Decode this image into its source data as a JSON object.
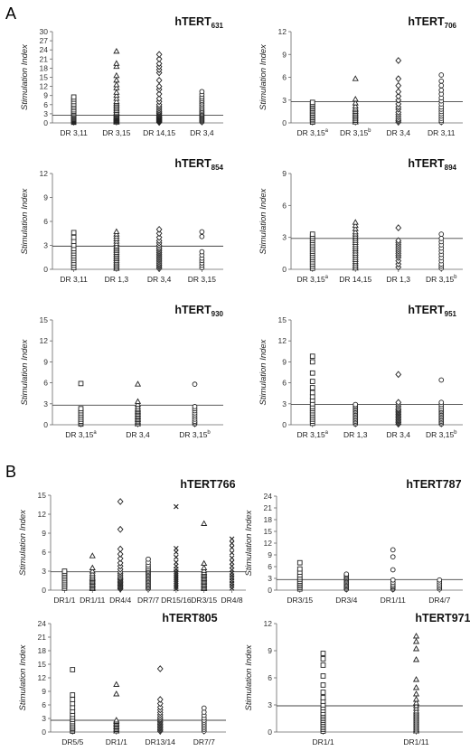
{
  "figure": {
    "panel_letters": [
      "A",
      "B"
    ]
  },
  "chart_data": [
    {
      "type": "scatter",
      "title": "hTERT",
      "title_subscript": "631",
      "ylabel": "Stimulation Index",
      "ylim": [
        0,
        30
      ],
      "yticks": [
        0,
        3,
        6,
        9,
        12,
        15,
        18,
        21,
        24,
        27,
        30
      ],
      "threshold": 2.5,
      "categories": [
        {
          "label": "DR 3,11",
          "sup": "",
          "marker": "square",
          "values": [
            0.2,
            0.4,
            0.6,
            0.8,
            1,
            1.2,
            1.5,
            1.8,
            2,
            2.3,
            2.6,
            3,
            3.4,
            3.8,
            4.3,
            5,
            5.6,
            6.2,
            7,
            7.8,
            8.5
          ]
        },
        {
          "label": "DR 3,15",
          "sup": "",
          "marker": "triangle",
          "values": [
            0.2,
            0.4,
            0.6,
            0.8,
            1,
            1.2,
            1.4,
            1.6,
            1.8,
            2,
            2.2,
            2.5,
            2.8,
            3.1,
            3.5,
            4,
            4.5,
            5,
            5.5,
            6,
            6.5,
            7,
            8,
            9,
            10,
            11.5,
            12.5,
            14,
            15.5,
            18.5,
            19.5,
            23.5
          ]
        },
        {
          "label": "DR 14,15",
          "sup": "",
          "marker": "diamond",
          "values": [
            0.2,
            0.4,
            0.6,
            0.8,
            1,
            1.2,
            1.4,
            1.6,
            1.8,
            2,
            2.3,
            2.6,
            3,
            3.3,
            3.7,
            4.2,
            4.8,
            5.4,
            6,
            7,
            8,
            9.5,
            11,
            12,
            14,
            16.5,
            17.5,
            18.5,
            19.5,
            21,
            22.5
          ]
        },
        {
          "label": "DR 3,4",
          "sup": "",
          "marker": "circle",
          "values": [
            0.3,
            0.6,
            0.9,
            1.2,
            1.5,
            1.8,
            2.1,
            2.4,
            2.7,
            3,
            3.4,
            3.8,
            4.2,
            4.7,
            5.2,
            5.8,
            6.3,
            6.9,
            7.4,
            8,
            8.6,
            9.4,
            10.3
          ]
        }
      ]
    },
    {
      "type": "scatter",
      "title": "hTERT",
      "title_subscript": "706",
      "ylabel": "Stimulation Index",
      "ylim": [
        0,
        12
      ],
      "yticks": [
        0,
        3,
        6,
        9,
        12
      ],
      "threshold": 2.8,
      "categories": [
        {
          "label": "DR 3,15",
          "sup": "a",
          "marker": "square",
          "values": [
            0.1,
            0.3,
            0.5,
            0.7,
            0.9,
            1.1,
            1.3,
            1.5,
            1.7,
            1.9,
            2.1,
            2.3,
            2.5,
            2.7
          ]
        },
        {
          "label": "DR 3,15",
          "sup": "b",
          "marker": "triangle",
          "values": [
            0.1,
            0.3,
            0.5,
            0.7,
            0.9,
            1.1,
            1.3,
            1.5,
            1.7,
            1.9,
            2.2,
            2.6,
            3.1,
            5.8
          ]
        },
        {
          "label": "DR 3,4",
          "sup": "",
          "marker": "diamond",
          "values": [
            0.1,
            0.3,
            0.5,
            0.8,
            1.1,
            1.4,
            1.8,
            2.1,
            2.5,
            3,
            3.5,
            4.1,
            4.9,
            5.8,
            8.2
          ]
        },
        {
          "label": "DR 3,11",
          "sup": "",
          "marker": "circle",
          "values": [
            0.1,
            0.3,
            0.6,
            0.9,
            1.2,
            1.5,
            1.8,
            2.1,
            2.5,
            2.9,
            3.3,
            3.8,
            4.3,
            4.9,
            5.5,
            6.3
          ]
        }
      ]
    },
    {
      "type": "scatter",
      "title": "hTERT",
      "title_subscript": "854",
      "ylabel": "Stimulation Index",
      "ylim": [
        0,
        12
      ],
      "yticks": [
        0,
        3,
        6,
        9,
        12
      ],
      "threshold": 2.9,
      "categories": [
        {
          "label": "DR 3,11",
          "sup": "",
          "marker": "square",
          "values": [
            0.2,
            0.5,
            0.8,
            1.1,
            1.4,
            1.7,
            2,
            2.3,
            2.6,
            3,
            3.5,
            4,
            4.6
          ]
        },
        {
          "label": "DR 1,3",
          "sup": "",
          "marker": "triangle",
          "values": [
            0.1,
            0.3,
            0.5,
            0.7,
            0.9,
            1.1,
            1.3,
            1.5,
            1.7,
            1.9,
            2.1,
            2.3,
            2.5,
            2.7,
            2.9,
            3.2,
            3.5,
            3.8,
            4.1,
            4.4,
            4.7
          ]
        },
        {
          "label": "DR 3,4",
          "sup": "",
          "marker": "diamond",
          "values": [
            0.1,
            0.3,
            0.5,
            0.7,
            0.9,
            1.1,
            1.3,
            1.5,
            1.7,
            1.9,
            2.1,
            2.3,
            2.5,
            2.7,
            3,
            3.3,
            3.6,
            4,
            4.5,
            5
          ]
        },
        {
          "label": "DR 3,15",
          "sup": "",
          "marker": "circle",
          "values": [
            0.2,
            0.5,
            0.8,
            1.1,
            1.4,
            1.8,
            2.2,
            4.1,
            4.7
          ]
        }
      ]
    },
    {
      "type": "scatter",
      "title": "hTERT",
      "title_subscript": "894",
      "ylabel": "Stimulation Index",
      "ylim": [
        0,
        9
      ],
      "yticks": [
        0,
        3,
        6,
        9
      ],
      "threshold": 2.9,
      "categories": [
        {
          "label": "DR 3,15",
          "sup": "a",
          "marker": "square",
          "values": [
            0.1,
            0.3,
            0.5,
            0.7,
            0.9,
            1.1,
            1.3,
            1.5,
            1.7,
            1.9,
            2.1,
            2.3,
            2.5,
            2.7,
            2.9,
            3.1,
            3.3
          ]
        },
        {
          "label": "DR 14,15",
          "sup": "",
          "marker": "triangle",
          "values": [
            0.1,
            0.3,
            0.5,
            0.7,
            0.9,
            1.1,
            1.3,
            1.5,
            1.7,
            1.9,
            2.1,
            2.3,
            2.5,
            2.7,
            2.9,
            3.1,
            3.3,
            3.5,
            3.8,
            4.1,
            4.4
          ]
        },
        {
          "label": "DR 1,3",
          "sup": "",
          "marker": "diamond",
          "values": [
            0.2,
            0.5,
            0.8,
            1.1,
            1.3,
            1.5,
            1.7,
            1.9,
            2.1,
            2.3,
            2.5,
            2.7,
            3.9
          ]
        },
        {
          "label": "DR 3,15",
          "sup": "b",
          "marker": "circle",
          "values": [
            0.1,
            0.3,
            0.5,
            0.8,
            1.1,
            1.4,
            1.7,
            2,
            2.3,
            2.6,
            2.9,
            3.3
          ]
        }
      ]
    },
    {
      "type": "scatter",
      "title": "hTERT",
      "title_subscript": "930",
      "ylabel": "Stimulation Index",
      "ylim": [
        0,
        15
      ],
      "yticks": [
        0,
        3,
        6,
        9,
        12,
        15
      ],
      "threshold": 2.8,
      "categories": [
        {
          "label": "DR 3,15",
          "sup": "a",
          "marker": "square",
          "values": [
            0.1,
            0.3,
            0.5,
            0.8,
            1.1,
            1.4,
            1.7,
            2,
            2.3,
            5.9
          ]
        },
        {
          "label": "DR 3,4",
          "sup": "",
          "marker": "triangle",
          "values": [
            0.1,
            0.3,
            0.5,
            0.7,
            0.9,
            1.1,
            1.3,
            1.5,
            1.7,
            1.9,
            2.1,
            2.3,
            2.6,
            2.9,
            3.3,
            5.8
          ]
        },
        {
          "label": "DR 3,15",
          "sup": "b",
          "marker": "circle",
          "values": [
            0.1,
            0.3,
            0.5,
            0.8,
            1.1,
            1.4,
            1.7,
            2,
            2.3,
            2.6,
            5.8
          ]
        }
      ]
    },
    {
      "type": "scatter",
      "title": "hTERT",
      "title_subscript": "951",
      "ylabel": "Stimulation Index",
      "ylim": [
        0,
        15
      ],
      "yticks": [
        0,
        3,
        6,
        9,
        12,
        15
      ],
      "threshold": 2.9,
      "categories": [
        {
          "label": "DR 3,15",
          "sup": "a",
          "marker": "square",
          "values": [
            0.2,
            0.5,
            0.8,
            1.1,
            1.4,
            1.7,
            2,
            2.3,
            2.6,
            3,
            3.5,
            4,
            4.6,
            5.3,
            6.2,
            7.4,
            9,
            9.8
          ]
        },
        {
          "label": "DR 1,3",
          "sup": "",
          "marker": "circle",
          "values": [
            0.1,
            0.3,
            0.5,
            0.7,
            0.9,
            1.1,
            1.3,
            1.5,
            1.7,
            1.9,
            2.1,
            2.3,
            2.5,
            2.7,
            2.9
          ]
        },
        {
          "label": "DR 3,4",
          "sup": "",
          "marker": "diamond",
          "values": [
            0.1,
            0.3,
            0.5,
            0.7,
            0.9,
            1.1,
            1.3,
            1.5,
            1.7,
            1.9,
            2.1,
            2.3,
            2.6,
            2.9,
            3.2,
            7.2
          ]
        },
        {
          "label": "DR 3,15",
          "sup": "b",
          "marker": "circle",
          "values": [
            0.1,
            0.3,
            0.5,
            0.7,
            0.9,
            1.1,
            1.3,
            1.5,
            1.7,
            1.9,
            2.1,
            2.3,
            2.6,
            2.9,
            3.2,
            6.4
          ]
        }
      ]
    },
    {
      "type": "scatter",
      "title": "hTERT766",
      "title_subscript": "",
      "ylabel": "Stimulation Index",
      "ylim": [
        0,
        15
      ],
      "yticks": [
        0,
        3,
        6,
        9,
        12,
        15
      ],
      "threshold": 2.9,
      "categories": [
        {
          "label": "DR1/1",
          "sup": "",
          "marker": "square",
          "values": [
            0.3,
            0.6,
            0.9,
            1.2,
            1.5,
            1.8,
            2.1,
            2.4,
            2.7,
            3
          ]
        },
        {
          "label": "DR1/11",
          "sup": "",
          "marker": "triangle",
          "values": [
            0.2,
            0.4,
            0.6,
            0.8,
            1,
            1.2,
            1.4,
            1.6,
            1.8,
            2,
            2.3,
            2.6,
            3,
            3.5,
            5.4
          ]
        },
        {
          "label": "DR4/4",
          "sup": "",
          "marker": "diamond",
          "values": [
            0.2,
            0.4,
            0.6,
            0.8,
            1,
            1.2,
            1.4,
            1.6,
            1.8,
            2,
            2.3,
            2.6,
            2.9,
            3.3,
            3.8,
            4.3,
            5,
            5.7,
            6.5,
            9.6,
            14
          ]
        },
        {
          "label": "DR7/7",
          "sup": "",
          "marker": "circle",
          "values": [
            0.2,
            0.4,
            0.6,
            0.8,
            1,
            1.2,
            1.4,
            1.6,
            1.8,
            2,
            2.2,
            2.4,
            2.6,
            2.8,
            3,
            3.2,
            3.4,
            3.7,
            4,
            4.4,
            4.9
          ]
        },
        {
          "label": "DR15/16",
          "sup": "",
          "marker": "x",
          "values": [
            0.2,
            0.5,
            0.8,
            1.1,
            1.4,
            1.7,
            2,
            2.3,
            2.6,
            2.9,
            3.3,
            3.8,
            4.4,
            5.2,
            6,
            6.6,
            13.2
          ]
        },
        {
          "label": "DR3/15",
          "sup": "",
          "marker": "triangle",
          "values": [
            0.2,
            0.4,
            0.6,
            0.8,
            1,
            1.2,
            1.4,
            1.6,
            1.8,
            2,
            2.2,
            2.4,
            2.6,
            2.8,
            3.1,
            3.5,
            4.2,
            10.5
          ]
        },
        {
          "label": "DR4/8",
          "sup": "",
          "marker": "x",
          "values": [
            0.3,
            0.7,
            1.1,
            1.5,
            1.9,
            2.3,
            2.7,
            3.2,
            3.8,
            4.4,
            5.1,
            5.9,
            6.7,
            7.4,
            8.1
          ]
        }
      ]
    },
    {
      "type": "scatter",
      "title": "hTERT787",
      "title_subscript": "",
      "ylabel": "Stimulation Index",
      "ylim": [
        0,
        24
      ],
      "yticks": [
        0,
        3,
        6,
        9,
        12,
        15,
        18,
        21,
        24
      ],
      "threshold": 2.7,
      "categories": [
        {
          "label": "DR3/15",
          "sup": "",
          "marker": "square",
          "values": [
            0.3,
            0.7,
            1.1,
            1.5,
            1.9,
            2.3,
            2.8,
            3.3,
            3.9,
            4.6,
            5.4,
            7
          ]
        },
        {
          "label": "DR3/4",
          "sup": "",
          "marker": "circle",
          "values": [
            0.2,
            0.5,
            0.8,
            1.1,
            1.4,
            1.7,
            2,
            2.3,
            2.6,
            2.9,
            3.2,
            3.5,
            3.8,
            4.1
          ]
        },
        {
          "label": "DR1/11",
          "sup": "",
          "marker": "circle",
          "values": [
            0.2,
            0.5,
            0.8,
            1.1,
            1.5,
            2,
            2.6,
            5.2,
            8.5,
            10.3
          ]
        },
        {
          "label": "DR4/7",
          "sup": "",
          "marker": "circle",
          "values": [
            0.3,
            0.7,
            1.1,
            1.6,
            2.1,
            2.6
          ]
        }
      ]
    },
    {
      "type": "scatter",
      "title": "hTERT805",
      "title_subscript": "",
      "ylabel": "Stimulation Index",
      "ylim": [
        0,
        24
      ],
      "yticks": [
        0,
        3,
        6,
        9,
        12,
        15,
        18,
        21,
        24
      ],
      "threshold": 2.6,
      "categories": [
        {
          "label": "DR5/5",
          "sup": "",
          "marker": "square",
          "values": [
            0.2,
            0.5,
            0.8,
            1.1,
            1.5,
            1.9,
            2.3,
            2.8,
            3.3,
            3.9,
            4.6,
            5.4,
            6.3,
            7.2,
            8.2,
            13.8
          ]
        },
        {
          "label": "DR1/1",
          "sup": "",
          "marker": "triangle",
          "values": [
            0.2,
            0.5,
            0.8,
            1.1,
            1.4,
            1.7,
            2,
            2.3,
            2.6,
            8.4,
            10.5
          ]
        },
        {
          "label": "DR13/14",
          "sup": "",
          "marker": "diamond",
          "values": [
            0.2,
            0.5,
            0.8,
            1.1,
            1.4,
            1.7,
            2,
            2.3,
            2.6,
            2.9,
            3.3,
            3.8,
            4.3,
            4.9,
            5.5,
            6.3,
            7.2,
            14
          ]
        },
        {
          "label": "DR7/7",
          "sup": "",
          "marker": "circle",
          "values": [
            0.2,
            0.6,
            1,
            1.4,
            1.8,
            2.2,
            2.6,
            3.1,
            3.7,
            4.4,
            5.3
          ]
        }
      ]
    },
    {
      "type": "scatter",
      "title": "hTERT971",
      "title_subscript": "",
      "ylabel": "Stimulation Index",
      "ylim": [
        0,
        12
      ],
      "yticks": [
        0,
        3,
        6,
        9,
        12
      ],
      "threshold": 2.9,
      "categories": [
        {
          "label": "DR1/1",
          "sup": "",
          "marker": "square",
          "values": [
            0.1,
            0.3,
            0.5,
            0.7,
            0.9,
            1.1,
            1.3,
            1.5,
            1.7,
            1.9,
            2.1,
            2.4,
            2.7,
            3,
            3.4,
            3.8,
            4.4,
            5.2,
            6.2,
            7.4,
            8.1,
            8.7
          ]
        },
        {
          "label": "DR1/11",
          "sup": "",
          "marker": "triangle",
          "values": [
            0.1,
            0.3,
            0.5,
            0.7,
            0.9,
            1.1,
            1.3,
            1.5,
            1.7,
            1.9,
            2.1,
            2.3,
            2.6,
            2.9,
            3.2,
            3.6,
            4.2,
            4.9,
            5.8,
            8,
            9.2,
            10,
            10.6
          ]
        }
      ]
    }
  ]
}
